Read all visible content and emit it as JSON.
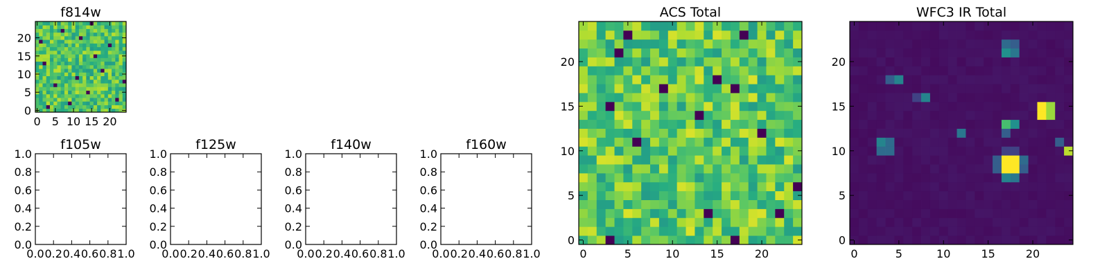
{
  "chart_data": [
    {
      "id": "f814w",
      "type": "heatmap",
      "title": "f814w",
      "colormap": "viridis",
      "grid_size": 25,
      "xlim": [
        0,
        25
      ],
      "ylim": [
        0,
        25
      ],
      "xticks": [
        0,
        5,
        10,
        15,
        20
      ],
      "yticks": [
        0,
        5,
        10,
        15,
        20
      ],
      "value_range": [
        0.55,
        0.9
      ],
      "low_pixels": [
        [
          3,
          1
        ],
        [
          7,
          22
        ],
        [
          14,
          5
        ],
        [
          20,
          18
        ],
        [
          2,
          13
        ],
        [
          11,
          9
        ],
        [
          22,
          3
        ],
        [
          16,
          15
        ],
        [
          5,
          7
        ],
        [
          9,
          2
        ],
        [
          18,
          11
        ],
        [
          12,
          20
        ],
        [
          24,
          8
        ],
        [
          1,
          19
        ],
        [
          15,
          24
        ]
      ]
    },
    {
      "id": "f105w",
      "type": "heatmap",
      "title": "f105w",
      "empty": true,
      "xlim": [
        0.0,
        1.0
      ],
      "ylim": [
        0.0,
        1.0
      ],
      "xticks": [
        "0.0",
        "0.2",
        "0.4",
        "0.6",
        "0.8",
        "1.0"
      ],
      "yticks": [
        "0.0",
        "0.2",
        "0.4",
        "0.6",
        "0.8",
        "1.0"
      ]
    },
    {
      "id": "f125w",
      "type": "heatmap",
      "title": "f125w",
      "empty": true,
      "xlim": [
        0.0,
        1.0
      ],
      "ylim": [
        0.0,
        1.0
      ],
      "xticks": [
        "0.0",
        "0.2",
        "0.4",
        "0.6",
        "0.8",
        "1.0"
      ],
      "yticks": [
        "0.0",
        "0.2",
        "0.4",
        "0.6",
        "0.8",
        "1.0"
      ]
    },
    {
      "id": "f140w",
      "type": "heatmap",
      "title": "f140w",
      "empty": true,
      "xlim": [
        0.0,
        1.0
      ],
      "ylim": [
        0.0,
        1.0
      ],
      "xticks": [
        "0.0",
        "0.2",
        "0.4",
        "0.6",
        "0.8",
        "1.0"
      ],
      "yticks": [
        "0.0",
        "0.2",
        "0.4",
        "0.6",
        "0.8",
        "1.0"
      ]
    },
    {
      "id": "f160w",
      "type": "heatmap",
      "title": "f160w",
      "empty": true,
      "xlim": [
        0.0,
        1.0
      ],
      "ylim": [
        0.0,
        1.0
      ],
      "xticks": [
        "0.0",
        "0.2",
        "0.4",
        "0.6",
        "0.8",
        "1.0"
      ],
      "yticks": [
        "0.0",
        "0.2",
        "0.4",
        "0.6",
        "0.8",
        "1.0"
      ]
    },
    {
      "id": "acs_total",
      "type": "heatmap",
      "title": "ACS Total",
      "colormap": "viridis",
      "grid_size": 25,
      "xlim": [
        0,
        25
      ],
      "ylim": [
        0,
        25
      ],
      "xticks": [
        0,
        5,
        10,
        15,
        20
      ],
      "yticks": [
        0,
        5,
        10,
        15,
        20
      ],
      "value_range": [
        0.55,
        0.95
      ],
      "low_pixels": [
        [
          5,
          23
        ],
        [
          18,
          23
        ],
        [
          4,
          21
        ],
        [
          15,
          18
        ],
        [
          9,
          17
        ],
        [
          17,
          17
        ],
        [
          3,
          15
        ],
        [
          13,
          14
        ],
        [
          20,
          12
        ],
        [
          6,
          11
        ],
        [
          14,
          3
        ],
        [
          22,
          3
        ],
        [
          24,
          6
        ],
        [
          17,
          0
        ],
        [
          3,
          0
        ]
      ]
    },
    {
      "id": "wfc3_ir_total",
      "type": "heatmap",
      "title": "WFC3 IR Total",
      "colormap": "viridis",
      "grid_size": 25,
      "xlim": [
        0,
        25
      ],
      "ylim": [
        0,
        25
      ],
      "xticks": [
        0,
        5,
        10,
        15,
        20
      ],
      "yticks": [
        0,
        5,
        10,
        15,
        20
      ],
      "background": 0.03,
      "sources": [
        {
          "x": 17,
          "y": 21,
          "value": 0.5
        },
        {
          "x": 18,
          "y": 21,
          "value": 0.4
        },
        {
          "x": 17,
          "y": 22,
          "value": 0.35
        },
        {
          "x": 18,
          "y": 22,
          "value": 0.3
        },
        {
          "x": 4,
          "y": 18,
          "value": 0.3
        },
        {
          "x": 5,
          "y": 18,
          "value": 0.45
        },
        {
          "x": 8,
          "y": 16,
          "value": 0.45
        },
        {
          "x": 7,
          "y": 16,
          "value": 0.2
        },
        {
          "x": 21,
          "y": 15,
          "value": 1.0
        },
        {
          "x": 21,
          "y": 14,
          "value": 1.0
        },
        {
          "x": 22,
          "y": 15,
          "value": 0.85
        },
        {
          "x": 22,
          "y": 14,
          "value": 0.85
        },
        {
          "x": 17,
          "y": 13,
          "value": 0.7
        },
        {
          "x": 18,
          "y": 13,
          "value": 0.5
        },
        {
          "x": 17,
          "y": 12,
          "value": 0.3
        },
        {
          "x": 12,
          "y": 12,
          "value": 0.4
        },
        {
          "x": 3,
          "y": 11,
          "value": 0.45
        },
        {
          "x": 4,
          "y": 11,
          "value": 0.35
        },
        {
          "x": 3,
          "y": 10,
          "value": 0.35
        },
        {
          "x": 4,
          "y": 10,
          "value": 0.35
        },
        {
          "x": 24,
          "y": 10,
          "value": 0.9
        },
        {
          "x": 23,
          "y": 11,
          "value": 0.3
        },
        {
          "x": 17,
          "y": 9,
          "value": 1.0
        },
        {
          "x": 18,
          "y": 9,
          "value": 1.0
        },
        {
          "x": 17,
          "y": 8,
          "value": 1.0
        },
        {
          "x": 18,
          "y": 8,
          "value": 1.0
        },
        {
          "x": 16,
          "y": 9,
          "value": 0.3
        },
        {
          "x": 19,
          "y": 9,
          "value": 0.35
        },
        {
          "x": 16,
          "y": 8,
          "value": 0.3
        },
        {
          "x": 19,
          "y": 8,
          "value": 0.3
        },
        {
          "x": 17,
          "y": 7,
          "value": 0.45
        },
        {
          "x": 18,
          "y": 7,
          "value": 0.4
        },
        {
          "x": 17,
          "y": 10,
          "value": 0.2
        },
        {
          "x": 18,
          "y": 10,
          "value": 0.2
        }
      ]
    }
  ]
}
